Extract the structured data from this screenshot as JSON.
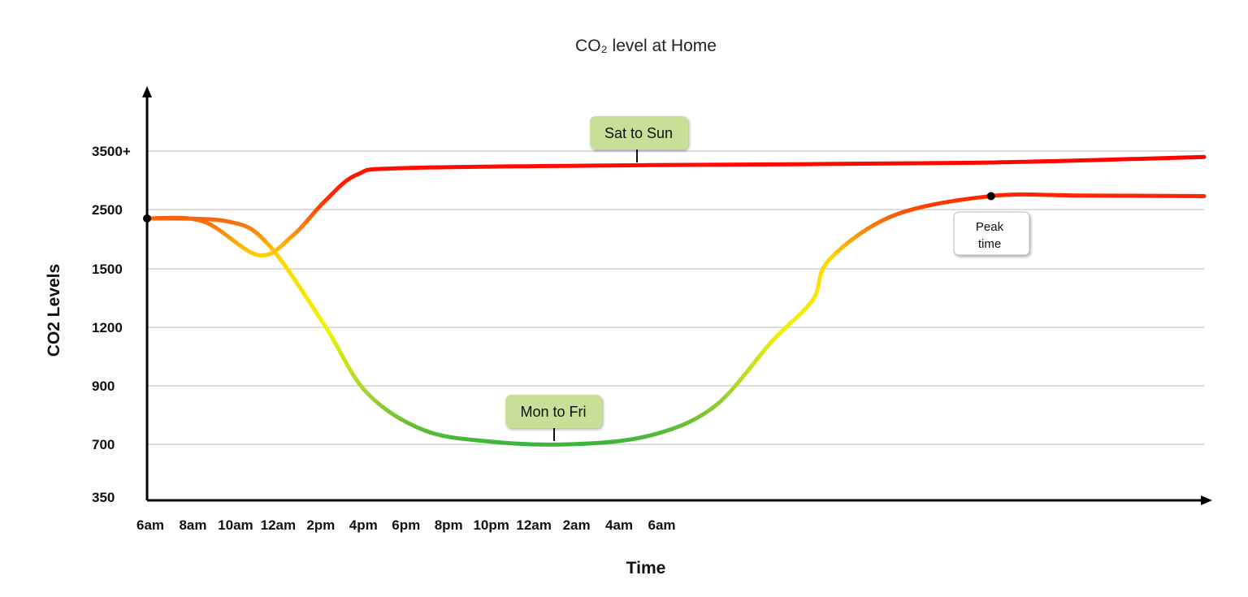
{
  "chart_data": {
    "type": "line",
    "title": "CO₂ level at Home",
    "xlabel": "Time",
    "ylabel": "CO2 Levels",
    "x_ticks": [
      "6am",
      "8am",
      "10am",
      "12am",
      "2pm",
      "4pm",
      "6pm",
      "8pm",
      "10pm",
      "12am",
      "2am",
      "4am",
      "6am"
    ],
    "y_ticks": [
      "350",
      "700",
      "900",
      "1200",
      "1500",
      "2500",
      "3500+"
    ],
    "y_tick_values": [
      350,
      700,
      900,
      1200,
      1500,
      2500,
      3500
    ],
    "grid": true,
    "legend": "none",
    "colors": {
      "high": "#ff0000",
      "mid": "#f5e800",
      "low": "#3cb43c",
      "annotation_fill": "#c8df98"
    },
    "series": [
      {
        "label": "Sat to Sun",
        "points": [
          [
            "06:00",
            2350
          ],
          [
            "07:19",
            2300
          ],
          [
            "08:37",
            1730
          ],
          [
            "09:25",
            2060
          ],
          [
            "10:10",
            2640
          ],
          [
            "10:56",
            3100
          ],
          [
            "12:05",
            3210
          ],
          [
            "17:48",
            3260
          ],
          [
            "01:25",
            3300
          ],
          [
            "06:48",
            3400
          ]
        ]
      },
      {
        "label": "Mon to Fri",
        "points": [
          [
            "06:00",
            2350
          ],
          [
            "07:53",
            2300
          ],
          [
            "08:50",
            1920
          ],
          [
            "10:10",
            1210
          ],
          [
            "11:08",
            880
          ],
          [
            "12:28",
            750
          ],
          [
            "14:00",
            710
          ],
          [
            "15:54",
            700
          ],
          [
            "17:48",
            730
          ],
          [
            "19:19",
            830
          ],
          [
            "20:40",
            1130
          ],
          [
            "21:37",
            1340
          ],
          [
            "22:00",
            1650
          ],
          [
            "23:31",
            2400
          ],
          [
            "01:48",
            2730
          ],
          [
            "03:54",
            2740
          ],
          [
            "06:48",
            2730
          ]
        ]
      }
    ],
    "annotations": [
      {
        "text": "Sat to Sun",
        "series": 0
      },
      {
        "text": "Mon to Fri",
        "series": 1
      },
      {
        "text_lines": [
          "Peak",
          "time"
        ],
        "point": [
          "01:48",
          2730
        ]
      }
    ],
    "markers": [
      [
        "06:00",
        2350
      ],
      [
        "01:48",
        2730
      ]
    ]
  }
}
